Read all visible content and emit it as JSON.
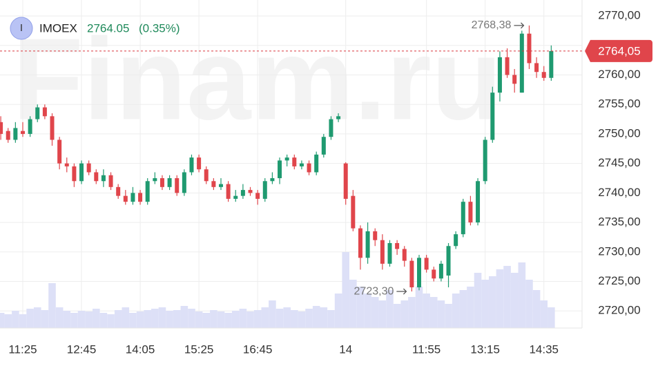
{
  "header": {
    "icon": "I",
    "ticker": "IMOEX",
    "price": "2764.05",
    "change": "(0.35%)"
  },
  "watermark": "Finam.ru",
  "chart_data": {
    "type": "candlestick",
    "categories": [
      null,
      null,
      null,
      "11:25",
      null,
      null,
      null,
      null,
      null,
      null,
      null,
      "12:45",
      null,
      null,
      null,
      null,
      null,
      null,
      null,
      "14:05",
      null,
      null,
      null,
      null,
      null,
      null,
      null,
      "15:25",
      null,
      null,
      null,
      null,
      null,
      null,
      null,
      "16:45",
      null,
      null,
      null,
      null,
      null,
      null,
      null,
      null,
      null,
      null,
      null,
      "14",
      null,
      null,
      null,
      null,
      null,
      null,
      null,
      null,
      null,
      null,
      "11:55",
      null,
      null,
      null,
      null,
      null,
      null,
      null,
      "13:15",
      null,
      null,
      null,
      null,
      null,
      null,
      null,
      "14:35",
      null
    ],
    "open": [
      2752,
      2750.5,
      2749,
      2750.5,
      2750,
      2752.5,
      2754.5,
      2753,
      2749,
      2745,
      2744.5,
      2742,
      2745,
      2743.5,
      2742,
      2743,
      2741,
      2739.5,
      2738.5,
      2740,
      2738.5,
      2742,
      2742.5,
      2741,
      2742.5,
      2740,
      2743.5,
      2746,
      2744,
      2742,
      2741,
      2741.5,
      2739,
      2739.5,
      2740.5,
      2740,
      2739,
      2742,
      2742.5,
      2745.5,
      2746,
      2744.5,
      2745,
      2743.5,
      2746.5,
      2749.5,
      2752.5,
      2745,
      2739.5,
      2734,
      2729,
      2733.5,
      2732,
      2728,
      2731.5,
      2730.5,
      2728.5,
      2724,
      2729,
      2727,
      2725.5,
      2726,
      2731,
      2733,
      2738.5,
      2735,
      2742,
      2749,
      2757,
      2763,
      2760,
      2757,
      2767,
      2762,
      2760.5,
      2759.5
    ],
    "high": [
      2753,
      2751,
      2752,
      2752,
      2753,
      2755,
      2755,
      2753.5,
      2749.5,
      2746,
      2745,
      2745.5,
      2745.5,
      2744,
      2744,
      2743.5,
      2741.5,
      2740.5,
      2741,
      2740.5,
      2742.5,
      2743.5,
      2743,
      2743,
      2743,
      2744,
      2746.5,
      2746.5,
      2744.5,
      2742.5,
      2742.5,
      2742,
      2740.5,
      2741.5,
      2741,
      2740.5,
      2742.5,
      2743.5,
      2746,
      2746.5,
      2746.5,
      2745.5,
      2745.5,
      2747,
      2750,
      2753,
      2753.5,
      2745.2,
      2740.5,
      2734.5,
      2735,
      2734,
      2733,
      2732,
      2732,
      2731,
      2729,
      2729.5,
      2729.5,
      2727.5,
      2728.5,
      2731.5,
      2733.5,
      2739,
      2739.5,
      2742.5,
      2749.5,
      2758,
      2764,
      2764.5,
      2761,
      2767.5,
      2768.38,
      2763,
      2761.5,
      2765
    ],
    "low": [
      2749,
      2748.5,
      2748.5,
      2749.5,
      2749.5,
      2752,
      2752.5,
      2748,
      2744,
      2743.5,
      2741,
      2741.5,
      2743,
      2741.5,
      2741,
      2740.5,
      2739,
      2738,
      2738,
      2738,
      2738,
      2741.5,
      2740.5,
      2740.5,
      2739.5,
      2739.5,
      2743,
      2743.5,
      2741.5,
      2740.5,
      2740.5,
      2738.5,
      2738.5,
      2739,
      2739.5,
      2738,
      2738.5,
      2741.5,
      2741.5,
      2744.5,
      2744,
      2744,
      2743,
      2743,
      2746,
      2749,
      2752,
      2738,
      2733.5,
      2727,
      2728,
      2731,
      2727,
      2727.5,
      2729.5,
      2727.5,
      2723.3,
      2723.5,
      2726.5,
      2725,
      2725,
      2724,
      2730.5,
      2732.5,
      2734.5,
      2734.5,
      2741.5,
      2748.5,
      2755.5,
      2759.5,
      2757,
      2757,
      2761,
      2759.5,
      2759,
      2759
    ],
    "close": [
      2750,
      2749,
      2751,
      2750,
      2752.5,
      2754.5,
      2753,
      2749,
      2745,
      2744.5,
      2742,
      2745,
      2743.5,
      2742,
      2743,
      2741,
      2739.5,
      2738.5,
      2740,
      2738.5,
      2742,
      2742.5,
      2741,
      2742.5,
      2740,
      2743.5,
      2746,
      2744,
      2742,
      2741,
      2741.5,
      2739,
      2739.5,
      2740.5,
      2740,
      2739,
      2742,
      2742.5,
      2745.5,
      2746,
      2744.5,
      2745,
      2743.5,
      2746.5,
      2749.5,
      2752.5,
      2753,
      2739,
      2734,
      2729,
      2733.5,
      2732,
      2728,
      2731.5,
      2730.5,
      2728.5,
      2724,
      2729,
      2727,
      2725.5,
      2728,
      2731,
      2733,
      2738.5,
      2735,
      2742,
      2749,
      2757,
      2763,
      2760,
      2758.5,
      2767,
      2762,
      2760.5,
      2759.5,
      2764.05
    ],
    "volume": [
      22,
      20,
      25,
      20,
      28,
      30,
      26,
      65,
      30,
      25,
      22,
      25,
      24,
      28,
      22,
      20,
      26,
      30,
      22,
      24,
      26,
      28,
      30,
      25,
      26,
      32,
      28,
      24,
      22,
      26,
      24,
      22,
      25,
      28,
      24,
      26,
      30,
      40,
      28,
      30,
      26,
      24,
      28,
      32,
      30,
      26,
      50,
      110,
      70,
      60,
      50,
      45,
      40,
      55,
      35,
      40,
      45,
      60,
      50,
      45,
      40,
      35,
      50,
      55,
      60,
      80,
      70,
      75,
      85,
      90,
      80,
      95,
      70,
      55,
      40,
      30
    ],
    "up_color": "#1f9a70",
    "down_color": "#e0454b",
    "volume_color": "#dde0f7",
    "ylim": [
      2717.1,
      2772.7
    ],
    "yticks": [
      {
        "value": 2720,
        "label": "2720,00"
      },
      {
        "value": 2725,
        "label": "2725,00"
      },
      {
        "value": 2730,
        "label": "2730,00"
      },
      {
        "value": 2735,
        "label": "2735,00"
      },
      {
        "value": 2740,
        "label": "2740,00"
      },
      {
        "value": 2745,
        "label": "2745,00"
      },
      {
        "value": 2750,
        "label": "2750,00"
      },
      {
        "value": 2755,
        "label": "2755,00"
      },
      {
        "value": 2760,
        "label": "2760,00"
      },
      {
        "value": 2765,
        "label": "2765,00"
      },
      {
        "value": 2770,
        "label": "2770,00"
      }
    ],
    "grid": true,
    "annotations": [
      {
        "value": 2768.38,
        "label": "2768,38"
      },
      {
        "value": 2723.3,
        "label": "2723,30"
      }
    ],
    "last_price": {
      "value": 2764.05,
      "label": "2764,05"
    }
  }
}
